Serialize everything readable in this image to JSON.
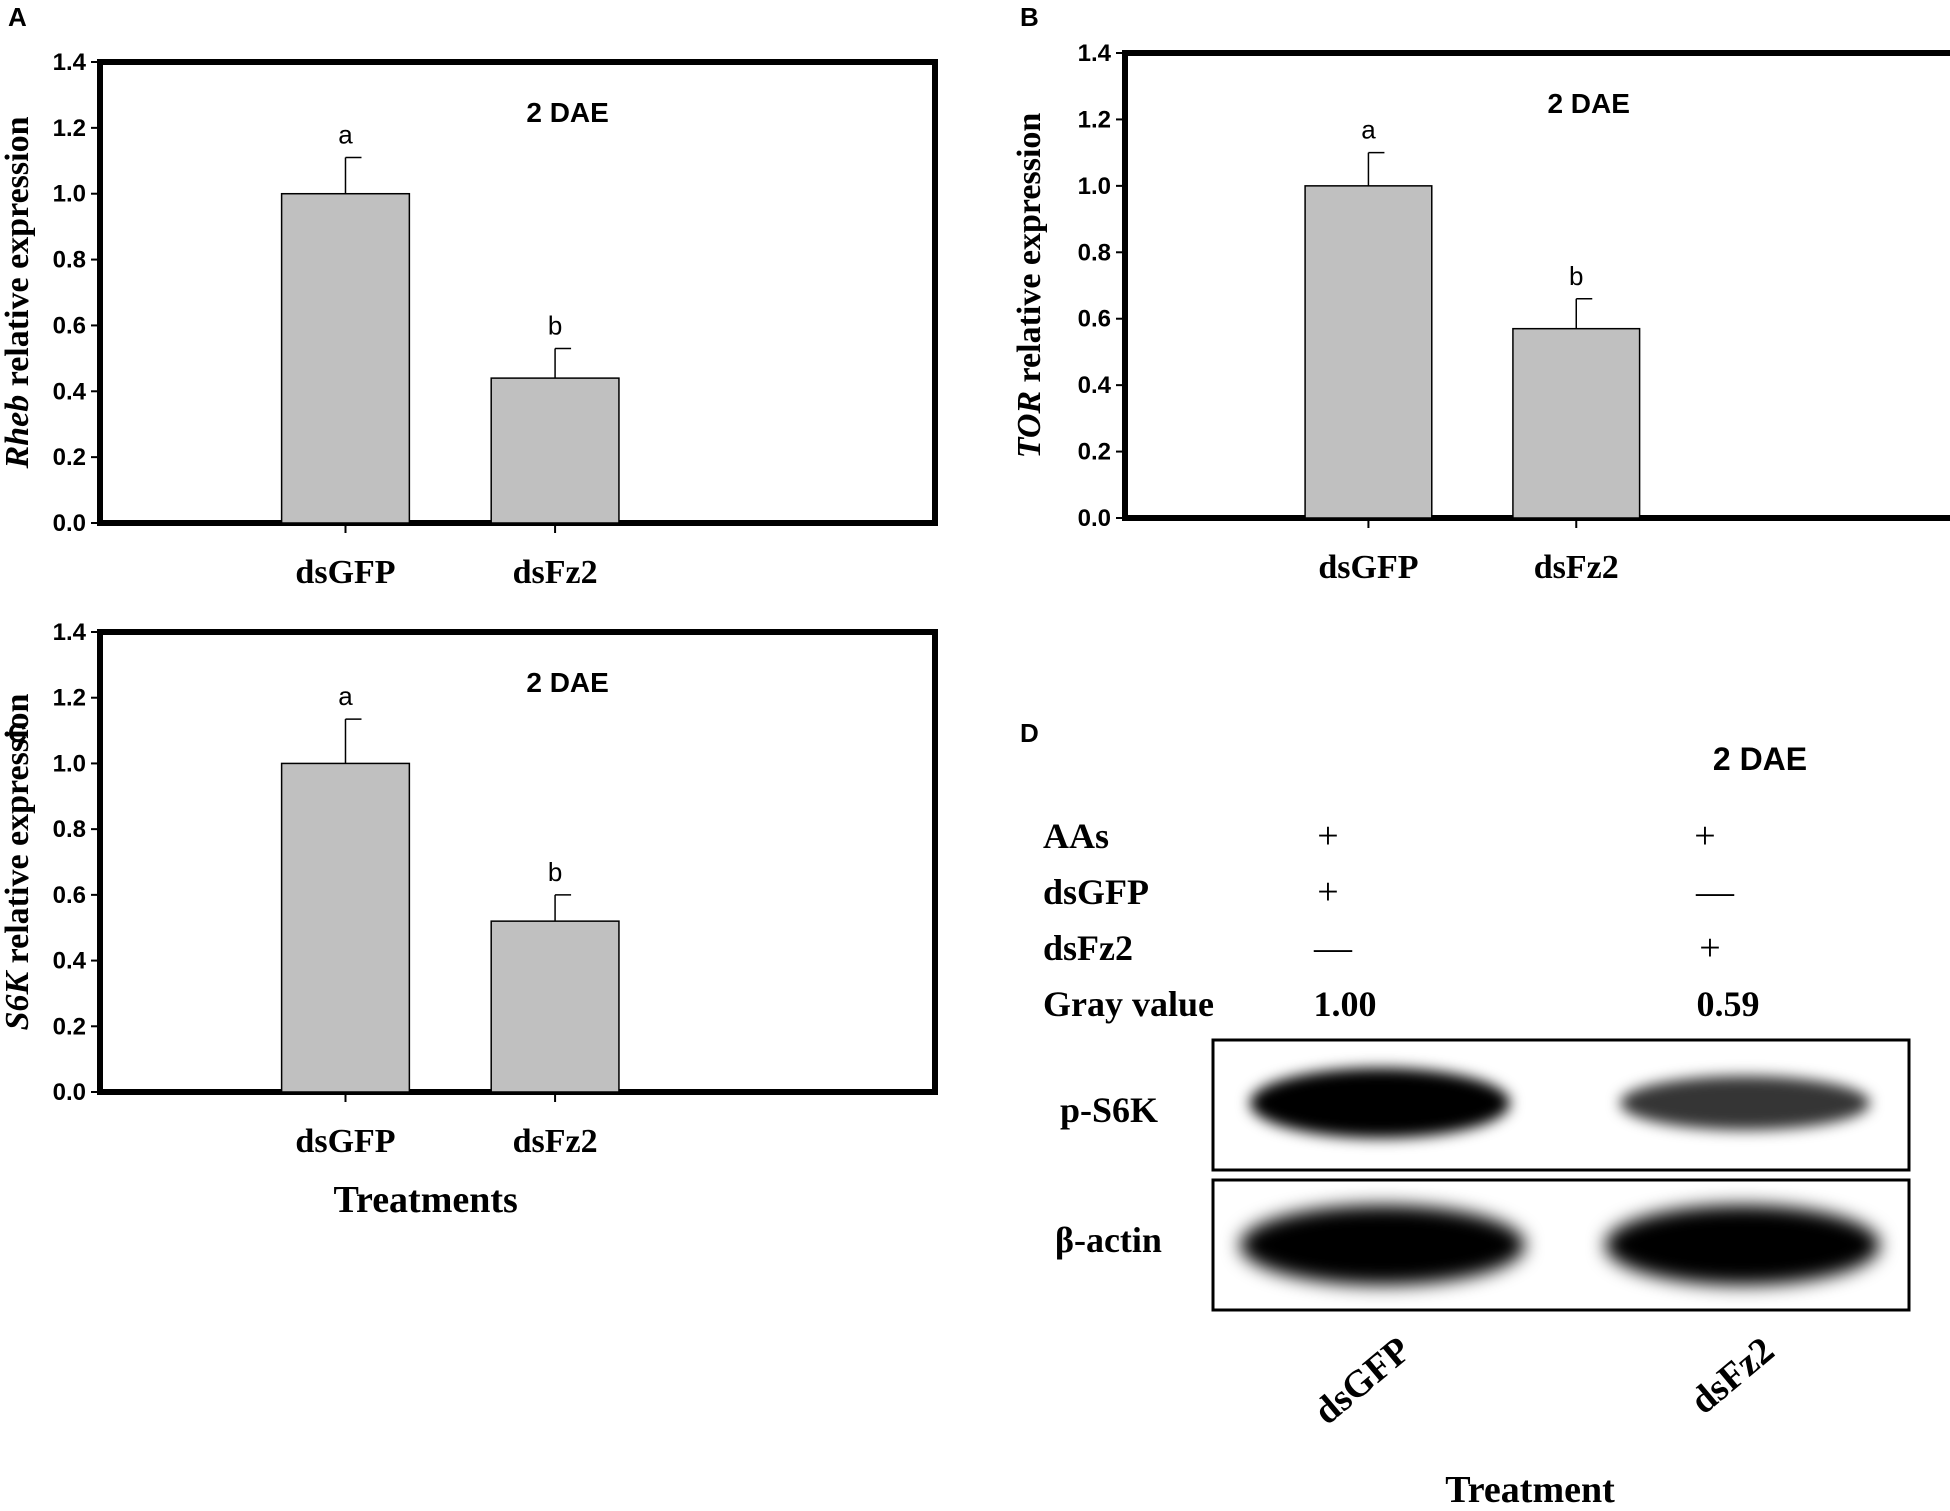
{
  "chart_data": [
    {
      "panel": "A",
      "type": "bar",
      "gene": "Rheb",
      "ylabel_suffix": " relative expression",
      "annotation": "2 DAE",
      "categories": [
        "dsGFP",
        "dsFz2"
      ],
      "values": [
        1.0,
        0.44
      ],
      "errors": [
        0.11,
        0.09
      ],
      "letters": [
        "a",
        "b"
      ],
      "ylim": [
        0,
        1.4
      ],
      "yticks": [
        "0.0",
        "0.2",
        "0.4",
        "0.6",
        "0.8",
        "1.0",
        "1.2",
        "1.4"
      ],
      "xlabel": "",
      "bar_color": "#c0c0c0"
    },
    {
      "panel": "B",
      "type": "bar",
      "gene": "TOR",
      "ylabel_suffix": "  relative expression",
      "annotation": "2 DAE",
      "categories": [
        "dsGFP",
        "dsFz2"
      ],
      "values": [
        1.0,
        0.57
      ],
      "errors": [
        0.1,
        0.09
      ],
      "letters": [
        "a",
        "b"
      ],
      "ylim": [
        0,
        1.4
      ],
      "yticks": [
        "0.0",
        "0.2",
        "0.4",
        "0.6",
        "0.8",
        "1.0",
        "1.2",
        "1.4"
      ],
      "xlabel": "",
      "bar_color": "#c0c0c0"
    },
    {
      "panel": "C",
      "type": "bar",
      "gene": "S6K",
      "ylabel_suffix": " relative expression",
      "annotation": "2 DAE",
      "categories": [
        "dsGFP",
        "dsFz2"
      ],
      "values": [
        1.0,
        0.52
      ],
      "errors": [
        0.135,
        0.08
      ],
      "letters": [
        "a",
        "b"
      ],
      "ylim": [
        0,
        1.4
      ],
      "yticks": [
        "0.0",
        "0.2",
        "0.4",
        "0.6",
        "0.8",
        "1.0",
        "1.2",
        "1.4"
      ],
      "xlabel": "Treatments",
      "bar_color": "#c0c0c0"
    }
  ],
  "blot": {
    "panel": "D",
    "annotation": "2 DAE",
    "condition_rows": [
      {
        "label": "AAs",
        "lane1": "+",
        "lane2": "+"
      },
      {
        "label": "dsGFP",
        "lane1": "+",
        "lane2": "—"
      },
      {
        "label": "dsFz2",
        "lane1": "—",
        "lane2": "+"
      }
    ],
    "gray_value_label": "Gray value",
    "gray_values": [
      "1.00",
      "0.59"
    ],
    "bands": [
      {
        "label": "p-S6K",
        "intensity": [
          1.0,
          0.59
        ]
      },
      {
        "label": "β-actin",
        "intensity": [
          1.0,
          1.0
        ]
      }
    ],
    "lanes": [
      "dsGFP",
      "dsFz2"
    ],
    "xlabel": "Treatment"
  }
}
